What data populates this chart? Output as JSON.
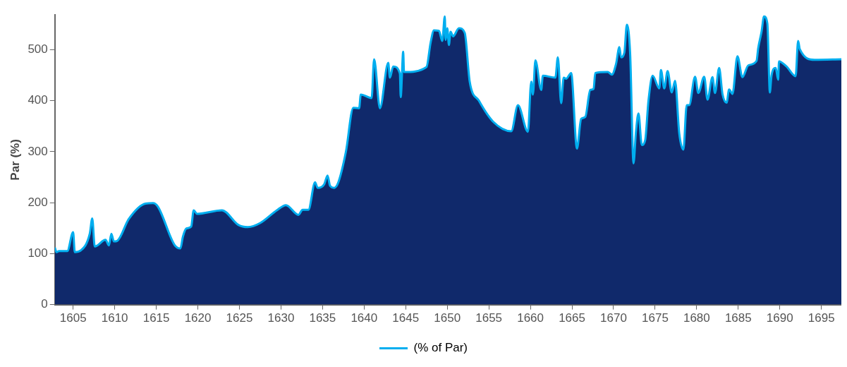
{
  "chart_data": {
    "type": "area",
    "ylabel": "Par (%)",
    "xlim": [
      1602.8,
      1697.4
    ],
    "xticks": [
      1605,
      1610,
      1615,
      1620,
      1625,
      1630,
      1635,
      1640,
      1645,
      1650,
      1655,
      1660,
      1665,
      1670,
      1675,
      1680,
      1685,
      1690,
      1695
    ],
    "ylim": [
      0,
      568
    ],
    "yticks": [
      0,
      100,
      200,
      300,
      400,
      500
    ],
    "grid": false,
    "legend": "bottom",
    "series": [
      {
        "name": "(% of Par)",
        "color": "#00aeef",
        "x": [
          1602.8,
          1603.0,
          1603.3,
          1604.3,
          1605.0,
          1605.2,
          1605.9,
          1607.0,
          1607.3,
          1607.6,
          1608.9,
          1609.3,
          1609.6,
          1609.9,
          1610.3,
          1611.7,
          1613.7,
          1614.6,
          1615.2,
          1617.2,
          1617.9,
          1618.2,
          1618.6,
          1619.2,
          1619.5,
          1619.9,
          1622.9,
          1624.9,
          1626.0,
          1627.5,
          1629.5,
          1630.6,
          1632.1,
          1632.6,
          1633.3,
          1634.1,
          1634.4,
          1635.2,
          1635.6,
          1635.9,
          1636.4,
          1636.9,
          1637.8,
          1638.7,
          1639.4,
          1639.6,
          1640.9,
          1641.2,
          1641.9,
          1642.9,
          1643.1,
          1643.5,
          1644.3,
          1644.4,
          1644.7,
          1644.8,
          1647.5,
          1648.0,
          1648.4,
          1649.0,
          1649.4,
          1649.7,
          1649.8,
          1650.0,
          1650.2,
          1650.4,
          1650.7,
          1651.4,
          1652.1,
          1652.7,
          1653.8,
          1655.5,
          1657.7,
          1658.5,
          1659.7,
          1660.1,
          1660.3,
          1660.6,
          1661.3,
          1661.5,
          1663.0,
          1663.3,
          1663.7,
          1664.0,
          1664.3,
          1664.9,
          1665.6,
          1666.1,
          1666.6,
          1667.2,
          1667.6,
          1667.8,
          1669.3,
          1669.8,
          1670.3,
          1670.7,
          1670.9,
          1671.3,
          1671.6,
          1672.0,
          1672.4,
          1672.7,
          1673.0,
          1673.4,
          1673.8,
          1674.2,
          1674.7,
          1675.5,
          1675.7,
          1676.1,
          1676.5,
          1677.0,
          1677.4,
          1677.9,
          1678.4,
          1678.8,
          1679.1,
          1679.8,
          1680.2,
          1680.9,
          1681.3,
          1681.9,
          1682.2,
          1682.7,
          1683.1,
          1683.6,
          1683.9,
          1684.3,
          1684.9,
          1685.5,
          1686.2,
          1687.2,
          1687.4,
          1687.8,
          1688.1,
          1688.5,
          1688.8,
          1689.0,
          1689.5,
          1689.8,
          1689.9,
          1690.8,
          1691.9,
          1692.2,
          1692.4,
          1694.2,
          1697.4
        ],
        "values": [
          112,
          103,
          105,
          105,
          142,
          103,
          106,
          139,
          169,
          114,
          127,
          116,
          139,
          124,
          125,
          168,
          198,
          199,
          192,
          117,
          110,
          133,
          149,
          153,
          185,
          178,
          185,
          156,
          152,
          160,
          185,
          195,
          176,
          186,
          186,
          240,
          229,
          236,
          253,
          233,
          229,
          240,
          299,
          386,
          385,
          412,
          405,
          481,
          385,
          474,
          445,
          467,
          453,
          407,
          496,
          456,
          466,
          514,
          538,
          537,
          517,
          565,
          519,
          542,
          509,
          535,
          526,
          542,
          533,
          437,
          400,
          359,
          340,
          391,
          339,
          437,
          412,
          479,
          421,
          449,
          445,
          485,
          395,
          445,
          443,
          454,
          306,
          364,
          368,
          421,
          423,
          454,
          456,
          451,
          472,
          505,
          485,
          494,
          549,
          491,
          277,
          340,
          375,
          313,
          322,
          400,
          449,
          424,
          460,
          424,
          458,
          416,
          439,
          336,
          304,
          391,
          391,
          447,
          415,
          447,
          402,
          446,
          415,
          464,
          413,
          396,
          422,
          413,
          487,
          446,
          469,
          478,
          503,
          535,
          565,
          551,
          416,
          449,
          464,
          441,
          477,
          467,
          448,
          517,
          501,
          480,
          481
        ]
      }
    ]
  }
}
